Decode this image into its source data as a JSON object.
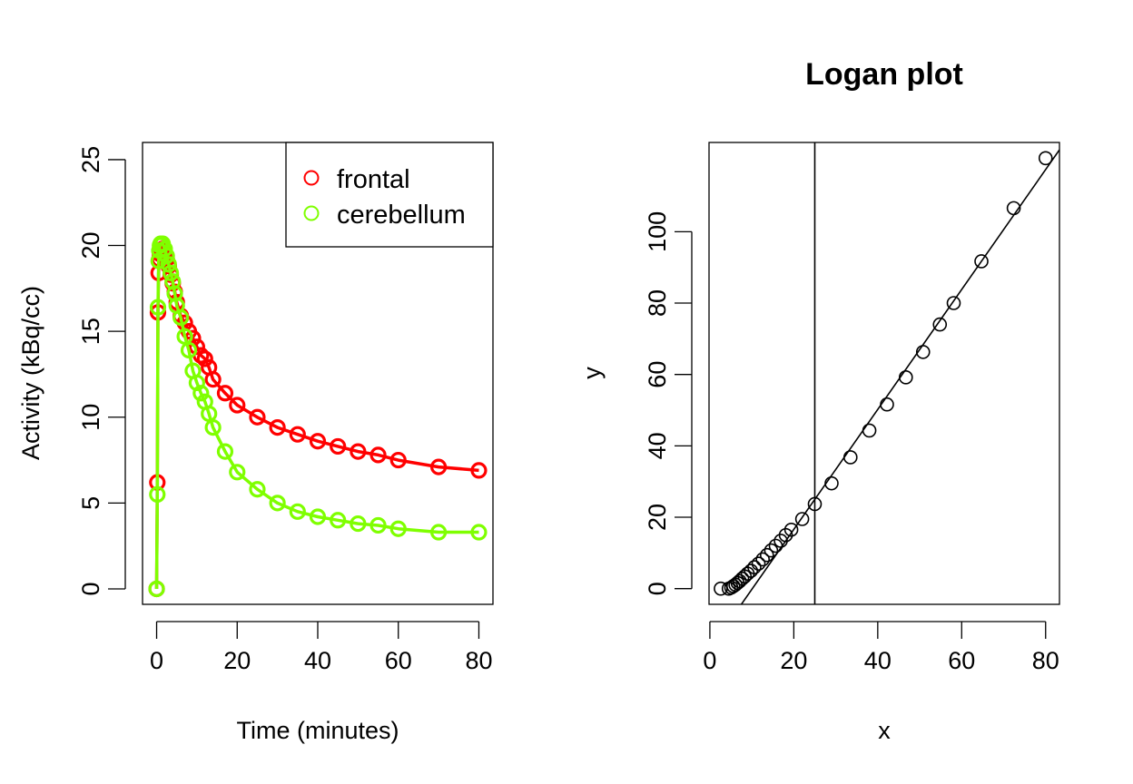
{
  "chart_data": [
    {
      "type": "line",
      "title": "",
      "xlabel": "Time (minutes)",
      "ylabel": "Activity (kBq/cc)",
      "xlim": [
        -3.5,
        83.5
      ],
      "ylim": [
        -0.9,
        26
      ],
      "xticks": [
        0,
        20,
        40,
        60,
        80
      ],
      "xtick_labels": [
        "0",
        "20",
        "40",
        "60",
        "80"
      ],
      "yticks": [
        0,
        5,
        10,
        15,
        20,
        25
      ],
      "ytick_labels": [
        "0",
        "5",
        "10",
        "15",
        "20",
        "25"
      ],
      "grid": false,
      "legend_position": "top-right",
      "series": [
        {
          "name": "frontal",
          "color": "#ff0000",
          "x": [
            0,
            0.17,
            0.33,
            0.5,
            0.67,
            0.83,
            1,
            1.5,
            2,
            2.5,
            3,
            3.5,
            4,
            4.5,
            5,
            6,
            7,
            8,
            9,
            10,
            11,
            12,
            13,
            14,
            17,
            20,
            25,
            30,
            35,
            40,
            45,
            50,
            55,
            60,
            70,
            80
          ],
          "y": [
            0,
            6.2,
            16.1,
            18.4,
            19.2,
            19.5,
            19.7,
            19.8,
            19.6,
            19.2,
            18.8,
            18.3,
            17.8,
            17.3,
            16.7,
            15.9,
            15.5,
            15.0,
            14.6,
            14.1,
            13.6,
            13.4,
            12.9,
            12.2,
            11.4,
            10.7,
            10.0,
            9.4,
            9.0,
            8.6,
            8.3,
            8.0,
            7.8,
            7.5,
            7.1,
            6.9
          ]
        },
        {
          "name": "cerebellum",
          "color": "#7fff00",
          "x": [
            0,
            0.17,
            0.33,
            0.5,
            0.67,
            0.83,
            1,
            1.5,
            2,
            2.5,
            3,
            3.5,
            4,
            4.5,
            5,
            6,
            7,
            8,
            9,
            10,
            11,
            12,
            13,
            14,
            17,
            20,
            25,
            30,
            35,
            40,
            45,
            50,
            55,
            60,
            70,
            80
          ],
          "y": [
            0,
            5.5,
            16.4,
            19.1,
            19.7,
            20.0,
            20.1,
            20.1,
            19.8,
            19.4,
            18.9,
            18.4,
            17.9,
            17.2,
            16.5,
            15.8,
            14.7,
            13.9,
            12.7,
            12.0,
            11.4,
            10.9,
            10.2,
            9.4,
            8.0,
            6.8,
            5.8,
            5.0,
            4.5,
            4.2,
            4.0,
            3.8,
            3.7,
            3.5,
            3.3,
            3.3
          ]
        }
      ]
    },
    {
      "type": "scatter",
      "title": "Logan plot",
      "xlabel": "x",
      "ylabel": "y",
      "xlim": [
        -0.2,
        83.3
      ],
      "ylim": [
        -4.4,
        125
      ],
      "xticks": [
        0,
        20,
        40,
        60,
        80
      ],
      "xtick_labels": [
        "0",
        "20",
        "40",
        "60",
        "80"
      ],
      "yticks": [
        0,
        20,
        40,
        60,
        80,
        100
      ],
      "ytick_labels": [
        "0",
        "20",
        "40",
        "60",
        "80",
        "100"
      ],
      "grid": false,
      "points_x": [
        2.6,
        4.5,
        5.1,
        5.6,
        6.1,
        6.6,
        7.1,
        7.7,
        8.3,
        9.0,
        9.8,
        10.6,
        11.6,
        12.6,
        13.6,
        14.6,
        15.7,
        16.9,
        18.1,
        19.4,
        22.0,
        25.0,
        29.0,
        33.5,
        38.0,
        42.2,
        46.7,
        50.8,
        54.8,
        58.1,
        64.7,
        72.4,
        80.0
      ],
      "points_y": [
        0.0,
        0.0,
        0.3,
        0.7,
        1.1,
        1.6,
        2.1,
        2.8,
        3.4,
        4.2,
        5.0,
        6.0,
        7.0,
        8.2,
        9.4,
        10.7,
        12.0,
        13.4,
        15.0,
        16.5,
        19.5,
        23.7,
        29.5,
        36.8,
        44.3,
        51.6,
        59.2,
        66.3,
        74.0,
        80.0,
        91.7,
        106.6,
        120.6
      ],
      "fit_line": {
        "slope": 1.68,
        "intercept": -17.0
      },
      "vertical_line_x": 25
    }
  ]
}
